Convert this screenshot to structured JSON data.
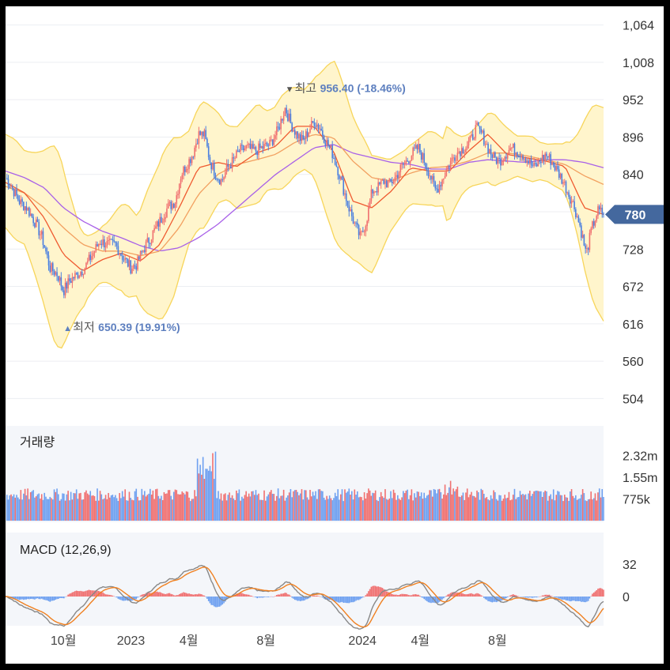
{
  "chart_data": {
    "type": "candlestick",
    "main": {
      "y_ticks": [
        "1,064",
        "1,008",
        "952",
        "896",
        "840",
        "784",
        "728",
        "672",
        "616",
        "560",
        "504"
      ],
      "ylim": [
        476,
        1092
      ],
      "current_price": "780",
      "high_marker": {
        "symbol": "▼",
        "label": "최고",
        "value": "956.40",
        "change": "(-18.46%)",
        "x_month": 8.0,
        "price": 956.4
      },
      "low_marker": {
        "symbol": "▲",
        "label": "최저",
        "value": "650.39",
        "change": "(19.91%)",
        "x_month": -3.5,
        "price": 650.39
      },
      "close_path": [
        [
          -6.5,
          835
        ],
        [
          -6.2,
          822
        ],
        [
          -5.8,
          800
        ],
        [
          -5.4,
          790
        ],
        [
          -5.0,
          770
        ],
        [
          -4.6,
          745
        ],
        [
          -4.2,
          700
        ],
        [
          -3.8,
          690
        ],
        [
          -3.5,
          665
        ],
        [
          -3.2,
          680
        ],
        [
          -2.8,
          690
        ],
        [
          -2.4,
          700
        ],
        [
          -2.0,
          720
        ],
        [
          -1.6,
          740
        ],
        [
          -1.2,
          735
        ],
        [
          -0.8,
          735
        ],
        [
          -0.4,
          715
        ],
        [
          0.0,
          700
        ],
        [
          0.3,
          705
        ],
        [
          0.6,
          725
        ],
        [
          1.0,
          745
        ],
        [
          1.3,
          760
        ],
        [
          1.6,
          775
        ],
        [
          1.9,
          790
        ],
        [
          2.3,
          800
        ],
        [
          2.6,
          840
        ],
        [
          2.9,
          855
        ],
        [
          3.2,
          870
        ],
        [
          3.5,
          900
        ],
        [
          3.8,
          900
        ],
        [
          4.1,
          860
        ],
        [
          4.4,
          840
        ],
        [
          4.7,
          830
        ],
        [
          5.0,
          850
        ],
        [
          5.3,
          860
        ],
        [
          5.6,
          875
        ],
        [
          6.0,
          880
        ],
        [
          6.4,
          875
        ],
        [
          6.8,
          880
        ],
        [
          7.2,
          885
        ],
        [
          7.6,
          905
        ],
        [
          8.0,
          940
        ],
        [
          8.3,
          915
        ],
        [
          8.6,
          900
        ],
        [
          8.9,
          890
        ],
        [
          9.2,
          905
        ],
        [
          9.5,
          920
        ],
        [
          9.8,
          910
        ],
        [
          10.1,
          890
        ],
        [
          10.4,
          875
        ],
        [
          10.7,
          850
        ],
        [
          11.0,
          820
        ],
        [
          11.3,
          790
        ],
        [
          11.6,
          765
        ],
        [
          11.9,
          745
        ],
        [
          12.2,
          770
        ],
        [
          12.5,
          815
        ],
        [
          12.8,
          820
        ],
        [
          13.1,
          830
        ],
        [
          13.4,
          825
        ],
        [
          13.7,
          835
        ],
        [
          14.0,
          850
        ],
        [
          14.3,
          860
        ],
        [
          14.6,
          872
        ],
        [
          14.9,
          880
        ],
        [
          15.2,
          860
        ],
        [
          15.5,
          840
        ],
        [
          15.8,
          815
        ],
        [
          16.1,
          830
        ],
        [
          16.4,
          850
        ],
        [
          16.7,
          865
        ],
        [
          17.0,
          875
        ],
        [
          17.3,
          880
        ],
        [
          17.6,
          890
        ],
        [
          17.9,
          910
        ],
        [
          18.2,
          900
        ],
        [
          18.5,
          880
        ],
        [
          18.8,
          865
        ],
        [
          19.1,
          860
        ],
        [
          19.4,
          870
        ],
        [
          19.7,
          880
        ],
        [
          20.0,
          875
        ],
        [
          20.3,
          870
        ],
        [
          20.6,
          860
        ],
        [
          20.9,
          850
        ],
        [
          21.2,
          860
        ],
        [
          21.5,
          870
        ],
        [
          21.8,
          860
        ],
        [
          22.1,
          845
        ],
        [
          22.4,
          830
        ],
        [
          22.7,
          810
        ],
        [
          23.0,
          790
        ],
        [
          23.3,
          760
        ],
        [
          23.6,
          720
        ],
        [
          23.9,
          760
        ],
        [
          24.2,
          785
        ],
        [
          24.5,
          782
        ]
      ],
      "bollinger_width_path": [
        [
          -6.5,
          70
        ],
        [
          -6.0,
          75
        ],
        [
          -5.5,
          70
        ],
        [
          -5.0,
          90
        ],
        [
          -4.6,
          110
        ],
        [
          -4.2,
          135
        ],
        [
          -3.9,
          150
        ],
        [
          -3.6,
          140
        ],
        [
          -3.2,
          105
        ],
        [
          -2.7,
          65
        ],
        [
          -2.2,
          45
        ],
        [
          -1.7,
          40
        ],
        [
          -1.2,
          45
        ],
        [
          -0.7,
          60
        ],
        [
          -0.2,
          70
        ],
        [
          0.3,
          60
        ],
        [
          0.8,
          90
        ],
        [
          1.3,
          110
        ],
        [
          1.7,
          125
        ],
        [
          2.2,
          120
        ],
        [
          2.6,
          100
        ],
        [
          3.0,
          85
        ],
        [
          3.4,
          90
        ],
        [
          3.8,
          95
        ],
        [
          4.2,
          80
        ],
        [
          4.6,
          65
        ],
        [
          5.0,
          55
        ],
        [
          5.4,
          60
        ],
        [
          5.8,
          65
        ],
        [
          6.2,
          70
        ],
        [
          6.6,
          75
        ],
        [
          7.0,
          60
        ],
        [
          7.4,
          60
        ],
        [
          7.8,
          70
        ],
        [
          8.2,
          70
        ],
        [
          8.6,
          65
        ],
        [
          9.0,
          60
        ],
        [
          9.4,
          70
        ],
        [
          9.8,
          90
        ],
        [
          10.2,
          115
        ],
        [
          10.6,
          135
        ],
        [
          11.0,
          125
        ],
        [
          11.4,
          110
        ],
        [
          11.8,
          100
        ],
        [
          12.2,
          95
        ],
        [
          12.6,
          85
        ],
        [
          13.0,
          70
        ],
        [
          13.4,
          55
        ],
        [
          13.8,
          50
        ],
        [
          14.2,
          45
        ],
        [
          14.6,
          45
        ],
        [
          15.0,
          50
        ],
        [
          15.4,
          55
        ],
        [
          15.8,
          55
        ],
        [
          16.2,
          50
        ],
        [
          16.4,
          75
        ],
        [
          16.8,
          55
        ],
        [
          17.2,
          42
        ],
        [
          17.6,
          40
        ],
        [
          18.0,
          45
        ],
        [
          18.4,
          50
        ],
        [
          18.8,
          55
        ],
        [
          19.2,
          45
        ],
        [
          19.6,
          38
        ],
        [
          20.0,
          30
        ],
        [
          20.4,
          32
        ],
        [
          20.8,
          34
        ],
        [
          21.2,
          28
        ],
        [
          21.6,
          28
        ],
        [
          22.0,
          32
        ],
        [
          22.4,
          35
        ],
        [
          22.8,
          50
        ],
        [
          23.2,
          80
        ],
        [
          23.6,
          120
        ],
        [
          24.0,
          150
        ],
        [
          24.5,
          160
        ]
      ],
      "mid_band_path": [
        [
          -6.5,
          830
        ],
        [
          -5.5,
          805
        ],
        [
          -4.5,
          760
        ],
        [
          -3.5,
          715
        ],
        [
          -2.5,
          695
        ],
        [
          -1.5,
          720
        ],
        [
          -0.5,
          730
        ],
        [
          0.5,
          715
        ],
        [
          1.5,
          740
        ],
        [
          2.5,
          790
        ],
        [
          3.5,
          850
        ],
        [
          4.5,
          865
        ],
        [
          5.5,
          850
        ],
        [
          6.5,
          870
        ],
        [
          7.5,
          880
        ],
        [
          8.5,
          905
        ],
        [
          9.5,
          910
        ],
        [
          10.5,
          880
        ],
        [
          11.5,
          820
        ],
        [
          12.5,
          780
        ],
        [
          13.5,
          810
        ],
        [
          14.5,
          840
        ],
        [
          15.5,
          850
        ],
        [
          16.5,
          840
        ],
        [
          17.5,
          860
        ],
        [
          18.5,
          880
        ],
        [
          19.5,
          870
        ],
        [
          20.5,
          865
        ],
        [
          21.5,
          858
        ],
        [
          22.5,
          850
        ],
        [
          23.5,
          810
        ],
        [
          24.5,
          780
        ]
      ],
      "ma_long_path": [
        [
          -6.5,
          845
        ],
        [
          -5.5,
          835
        ],
        [
          -4.5,
          820
        ],
        [
          -3.5,
          790
        ],
        [
          -2.5,
          770
        ],
        [
          -1.5,
          755
        ],
        [
          -0.5,
          745
        ],
        [
          0.5,
          733
        ],
        [
          1.5,
          725
        ],
        [
          2.5,
          730
        ],
        [
          3.5,
          745
        ],
        [
          4.5,
          765
        ],
        [
          5.5,
          790
        ],
        [
          6.5,
          815
        ],
        [
          7.5,
          840
        ],
        [
          8.5,
          860
        ],
        [
          9.5,
          880
        ],
        [
          10.5,
          885
        ],
        [
          11.5,
          872
        ],
        [
          12.5,
          865
        ],
        [
          13.5,
          858
        ],
        [
          14.5,
          855
        ],
        [
          15.5,
          848
        ],
        [
          16.5,
          848
        ],
        [
          17.5,
          858
        ],
        [
          18.5,
          862
        ],
        [
          19.5,
          860
        ],
        [
          20.5,
          858
        ],
        [
          21.5,
          862
        ],
        [
          22.5,
          862
        ],
        [
          23.5,
          858
        ],
        [
          24.5,
          850
        ]
      ],
      "ma_mid_path": [
        [
          -6.5,
          822
        ],
        [
          -5.5,
          812
        ],
        [
          -4.5,
          790
        ],
        [
          -3.5,
          760
        ],
        [
          -2.5,
          735
        ],
        [
          -1.5,
          725
        ],
        [
          -0.5,
          725
        ],
        [
          0.5,
          718
        ],
        [
          1.5,
          725
        ],
        [
          2.5,
          760
        ],
        [
          3.5,
          810
        ],
        [
          4.5,
          840
        ],
        [
          5.5,
          855
        ],
        [
          6.5,
          862
        ],
        [
          7.5,
          870
        ],
        [
          8.5,
          888
        ],
        [
          9.5,
          900
        ],
        [
          10.5,
          895
        ],
        [
          11.5,
          860
        ],
        [
          12.5,
          835
        ],
        [
          13.5,
          830
        ],
        [
          14.5,
          842
        ],
        [
          15.5,
          850
        ],
        [
          16.5,
          852
        ],
        [
          17.5,
          860
        ],
        [
          18.5,
          872
        ],
        [
          19.5,
          872
        ],
        [
          20.5,
          868
        ],
        [
          21.5,
          862
        ],
        [
          22.5,
          855
        ],
        [
          23.5,
          838
        ],
        [
          24.5,
          825
        ]
      ],
      "ma_short_path": [
        [
          -6.5,
          828
        ],
        [
          -5.5,
          812
        ],
        [
          -4.5,
          775
        ],
        [
          -3.5,
          720
        ],
        [
          -2.5,
          695
        ],
        [
          -1.5,
          712
        ],
        [
          -0.5,
          722
        ],
        [
          0.5,
          710
        ],
        [
          1.5,
          735
        ],
        [
          2.5,
          790
        ],
        [
          3.5,
          850
        ],
        [
          4.5,
          858
        ],
        [
          5.5,
          852
        ],
        [
          6.5,
          872
        ],
        [
          7.5,
          882
        ],
        [
          8.5,
          912
        ],
        [
          9.5,
          912
        ],
        [
          10.5,
          875
        ],
        [
          11.5,
          800
        ],
        [
          12.5,
          790
        ],
        [
          13.5,
          815
        ],
        [
          14.5,
          850
        ],
        [
          15.5,
          845
        ],
        [
          16.5,
          845
        ],
        [
          17.5,
          875
        ],
        [
          18.5,
          900
        ],
        [
          19.5,
          870
        ],
        [
          20.5,
          865
        ],
        [
          21.5,
          860
        ],
        [
          22.5,
          852
        ],
        [
          23.5,
          790
        ],
        [
          24.5,
          780
        ]
      ],
      "colors": {
        "up": "#f07070",
        "down": "#4a7fe0",
        "band_fill": "#fff5cc",
        "band_line": "#f7d55a",
        "ma_short": "#ef5a30",
        "ma_mid": "#f2a060",
        "ma_long": "#a860e8",
        "price_tag": "#44689e"
      }
    },
    "volume": {
      "title": "거래량",
      "y_ticks": [
        "2.32m",
        "1.55m",
        "775k"
      ],
      "y_values": [
        2320000,
        1550000,
        775000
      ],
      "colors": {
        "up": "#f07070",
        "down": "#6ea0f0"
      }
    },
    "macd": {
      "title": "MACD",
      "params": "(12,26,9)",
      "y_ticks": [
        "32",
        "0"
      ],
      "y_values": [
        32,
        0
      ],
      "colors": {
        "macd": "#888888",
        "signal": "#f08020",
        "hist_up": "#f07070",
        "hist_down": "#6ea0f0"
      }
    },
    "x_ticks": [
      {
        "label": "10월",
        "month": -3.5
      },
      {
        "label": "2023",
        "month": 0
      },
      {
        "label": "4월",
        "month": 3
      },
      {
        "label": "8월",
        "month": 7
      },
      {
        "label": "2024",
        "month": 12
      },
      {
        "label": "4월",
        "month": 15
      },
      {
        "label": "8월",
        "month": 19
      }
    ]
  }
}
